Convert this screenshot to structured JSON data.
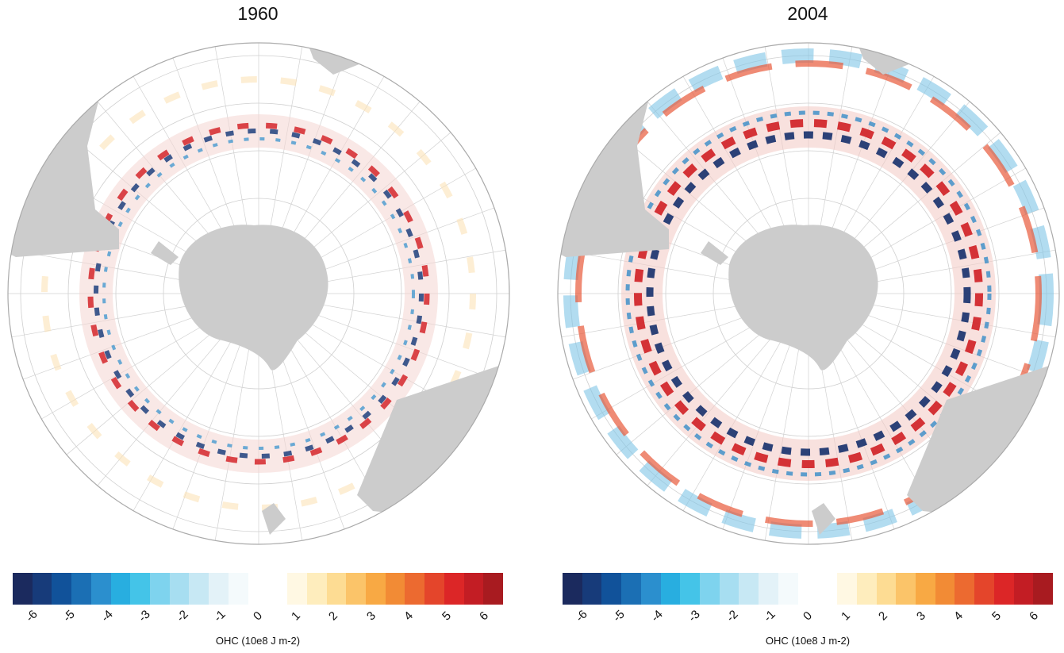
{
  "panels": [
    {
      "title": "1960",
      "colorbar_label": "OHC (10e8 J m-2)"
    },
    {
      "title": "2004",
      "colorbar_label": "OHC (10e8 J m-2)"
    }
  ],
  "colorbar": {
    "ticks": [
      "-6",
      "-5",
      "-4",
      "-3",
      "-2",
      "-1",
      "0",
      "1",
      "2",
      "3",
      "4",
      "5",
      "6"
    ],
    "colors": [
      "#1b2a5e",
      "#173b7a",
      "#11529a",
      "#1b6fb4",
      "#2b8fce",
      "#28aee0",
      "#44c4e8",
      "#7ed3ee",
      "#a7def1",
      "#c7e8f4",
      "#e3f2f8",
      "#f4fafc",
      "#ffffff",
      "#ffffff",
      "#fff8e3",
      "#feedbd",
      "#fddc93",
      "#fbc469",
      "#f8a944",
      "#f28b35",
      "#ec6a30",
      "#e4452b",
      "#dc2627",
      "#c31d24",
      "#a81b20"
    ],
    "domain": [
      -6.5,
      6.5
    ]
  },
  "map": {
    "land_color": "#cccccc",
    "ocean_color": "#ffffff",
    "grid_color": "#c8c8c8"
  }
}
